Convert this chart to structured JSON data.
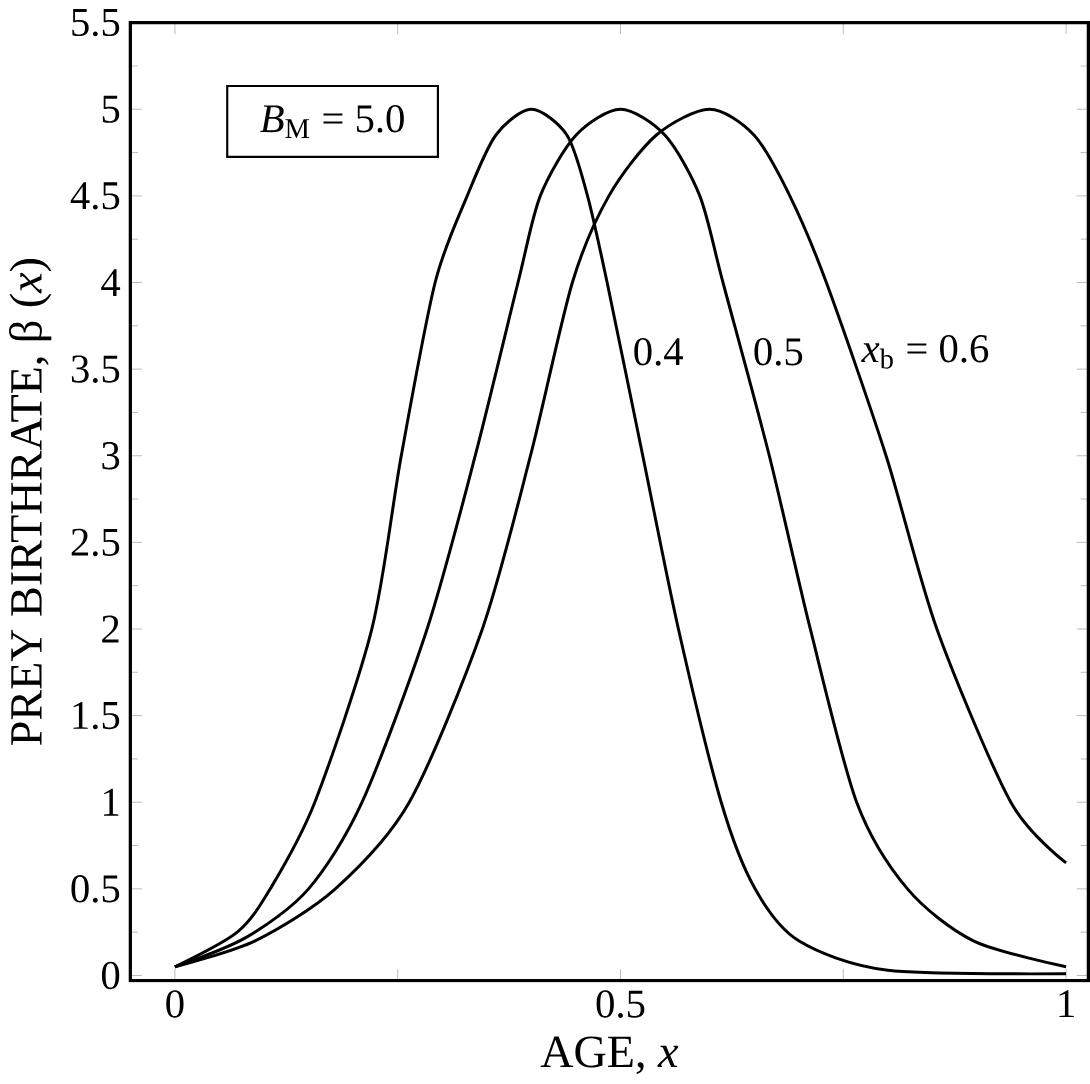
{
  "chart_data": {
    "type": "line",
    "xlabel": "AGE, *x*",
    "ylabel": "PREY BIRTHRATE, β (*x*)",
    "xlim": [
      -0.05,
      1.025
    ],
    "ylim": [
      -0.03,
      5.5
    ],
    "xticks": [
      0,
      {
        "value": 0.25,
        "label": null
      },
      0.5,
      {
        "value": 0.75,
        "label": null
      },
      1
    ],
    "yticks": [
      0,
      0.5,
      1,
      1.5,
      2,
      2.5,
      3,
      3.5,
      4,
      4.5,
      5,
      5.5
    ],
    "grid": false,
    "line_style": "solid",
    "series": [
      {
        "name": "0.4",
        "color": "#000000",
        "x": [
          0,
          0.07,
          0.107,
          0.157,
          0.221,
          0.254,
          0.292,
          0.328,
          0.36,
          0.4,
          0.44,
          0.463,
          0.485,
          0.525,
          0.565,
          0.613,
          0.651,
          0.7,
          0.8,
          1
        ],
        "values": [
          0.05,
          0.25,
          0.5,
          1,
          2,
          3,
          4,
          4.5,
          4.85,
          5,
          4.85,
          4.5,
          4,
          3,
          2,
          1,
          0.5,
          0.2,
          0.03,
          0.01
        ]
      },
      {
        "name": "0.5",
        "color": "#000000",
        "x": [
          0,
          0.08,
          0.15,
          0.21,
          0.283,
          0.337,
          0.385,
          0.41,
          0.45,
          0.5,
          0.55,
          0.589,
          0.615,
          0.667,
          0.713,
          0.765,
          0.822,
          0.896,
          1
        ],
        "values": [
          0.05,
          0.22,
          0.5,
          1,
          2,
          3,
          4,
          4.5,
          4.85,
          5,
          4.85,
          4.5,
          4,
          3,
          2,
          1,
          0.5,
          0.2,
          0.05
        ]
      },
      {
        "name": "*x*$_{b}$ = 0.6",
        "color": "#000000",
        "x": [
          0,
          0.09,
          0.18,
          0.263,
          0.345,
          0.399,
          0.446,
          0.487,
          0.54,
          0.6,
          0.65,
          0.69,
          0.731,
          0.798,
          0.855,
          0.938,
          1
        ],
        "values": [
          0.05,
          0.2,
          0.5,
          1,
          2,
          3,
          4,
          4.5,
          4.85,
          5,
          4.85,
          4.5,
          4,
          3,
          2,
          1,
          0.65
        ]
      }
    ],
    "annotations": [
      "*B*$_{M}$ = 5.0"
    ]
  }
}
